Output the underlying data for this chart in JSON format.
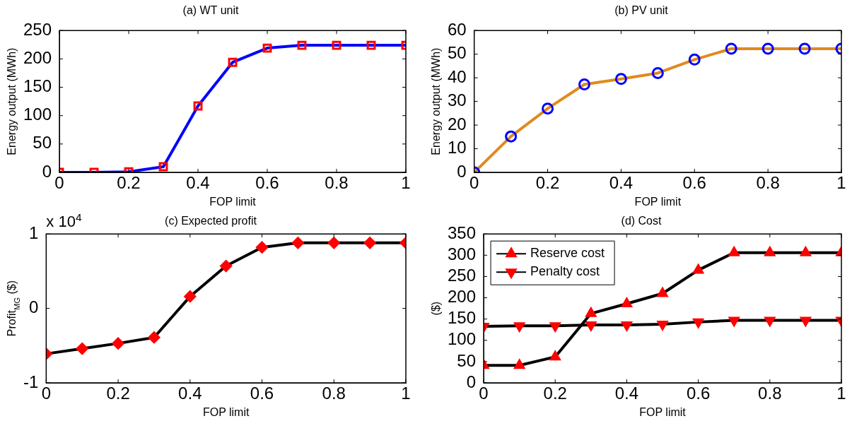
{
  "chart_data": [
    {
      "type": "line",
      "title": "(a) WT unit",
      "xlabel": "FOP limit",
      "ylabel": "Energy output (MWh)",
      "x": [
        0,
        0.1,
        0.2,
        0.3,
        0.4,
        0.5,
        0.6,
        0.7,
        0.8,
        0.9,
        1
      ],
      "xlim": [
        0,
        1
      ],
      "xticks": [
        0,
        0.2,
        0.4,
        0.6,
        0.8,
        1
      ],
      "ylim": [
        0,
        250
      ],
      "yticks": [
        0,
        50,
        100,
        150,
        200,
        250
      ],
      "grid": false,
      "legend": false,
      "marker": "square",
      "line_style": "solid",
      "series": [
        {
          "color": "#0000ff",
          "colors": [
            "#ff0000",
            "#ff0000",
            "#ff0000",
            "#ff0000",
            "#ff0000",
            "#ff0000",
            "#ff0000",
            "#ff0000",
            "#ff0000",
            "#ff0000",
            "#ff0000"
          ],
          "values": [
            0,
            0,
            1,
            10,
            117,
            194,
            219,
            224,
            224,
            224,
            224
          ]
        }
      ]
    },
    {
      "type": "line",
      "title": "(b) PV unit",
      "xlabel": "FOP limit",
      "ylabel": "Energy output (MWh)",
      "x": [
        0,
        0.1,
        0.2,
        0.3,
        0.4,
        0.5,
        0.6,
        0.7,
        0.8,
        0.9,
        1
      ],
      "xlim": [
        0,
        1
      ],
      "xticks": [
        0,
        0.2,
        0.4,
        0.6,
        0.8,
        1
      ],
      "ylim": [
        0,
        60
      ],
      "yticks": [
        0,
        10,
        20,
        30,
        40,
        50,
        60
      ],
      "grid": false,
      "legend": false,
      "marker": "circle",
      "line_style": "solid",
      "series": [
        {
          "color": "#e08a1e",
          "colors": [
            "#0000ff",
            "#0000ff",
            "#0000ff",
            "#0000ff",
            "#0000ff",
            "#0000ff",
            "#0000ff",
            "#0000ff",
            "#0000ff",
            "#0000ff",
            "#0000ff"
          ],
          "values": [
            0,
            15.2,
            27,
            37.2,
            39.5,
            42,
            47.7,
            52.3,
            52.3,
            52.3,
            52.3
          ]
        }
      ]
    },
    {
      "type": "line",
      "title": "(c) Expected profit",
      "xlabel": "FOP limit",
      "ylabel": "Profit$_{MG}$ ($)",
      "annotations": [
        "x 10$^{4}$"
      ],
      "x": [
        0,
        0.1,
        0.2,
        0.3,
        0.4,
        0.5,
        0.6,
        0.7,
        0.8,
        0.9,
        1
      ],
      "xlim": [
        0,
        1
      ],
      "xticks": [
        0,
        0.2,
        0.4,
        0.6,
        0.8,
        1
      ],
      "ylim": [
        -1,
        1
      ],
      "yticks": [
        -1,
        0,
        1
      ],
      "grid": false,
      "legend": false,
      "marker": "diamond",
      "line_style": "solid",
      "series": [
        {
          "color": "#000000",
          "colors": [
            "#ff0000",
            "#ff0000",
            "#ff0000",
            "#ff0000",
            "#ff0000",
            "#ff0000",
            "#ff0000",
            "#ff0000",
            "#ff0000",
            "#ff0000",
            "#ff0000"
          ],
          "values": [
            -0.61,
            -0.54,
            -0.47,
            -0.39,
            0.16,
            0.57,
            0.82,
            0.88,
            0.88,
            0.88,
            0.88
          ]
        }
      ]
    },
    {
      "type": "line",
      "title": "(d) Cost",
      "xlabel": "FOP limit",
      "ylabel": "($)",
      "x": [
        0,
        0.1,
        0.2,
        0.3,
        0.4,
        0.5,
        0.6,
        0.7,
        0.8,
        0.9,
        1
      ],
      "xlim": [
        0,
        1
      ],
      "xticks": [
        0,
        0.2,
        0.4,
        0.6,
        0.8,
        1
      ],
      "ylim": [
        0,
        350
      ],
      "yticks": [
        0,
        50,
        100,
        150,
        200,
        250,
        300,
        350
      ],
      "grid": false,
      "legend": "top left",
      "line_style": "solid",
      "series": [
        {
          "name": "Reserve cost",
          "marker": "triangle",
          "color": "#000000",
          "colors": [
            "#ff0000",
            "#ff0000",
            "#ff0000",
            "#ff0000",
            "#ff0000",
            "#ff0000",
            "#ff0000",
            "#ff0000",
            "#ff0000",
            "#ff0000",
            "#ff0000"
          ],
          "values": [
            41,
            41,
            61,
            163,
            186,
            210,
            265,
            306,
            306,
            306,
            306
          ]
        },
        {
          "name": "Penalty cost",
          "marker": "triangle-down",
          "color": "#000000",
          "colors": [
            "#ff0000",
            "#ff0000",
            "#ff0000",
            "#ff0000",
            "#ff0000",
            "#ff0000",
            "#ff0000",
            "#ff0000",
            "#ff0000",
            "#ff0000",
            "#ff0000"
          ],
          "values": [
            133,
            134,
            134,
            136,
            136,
            138,
            143,
            147,
            147,
            147,
            147
          ]
        }
      ]
    }
  ]
}
